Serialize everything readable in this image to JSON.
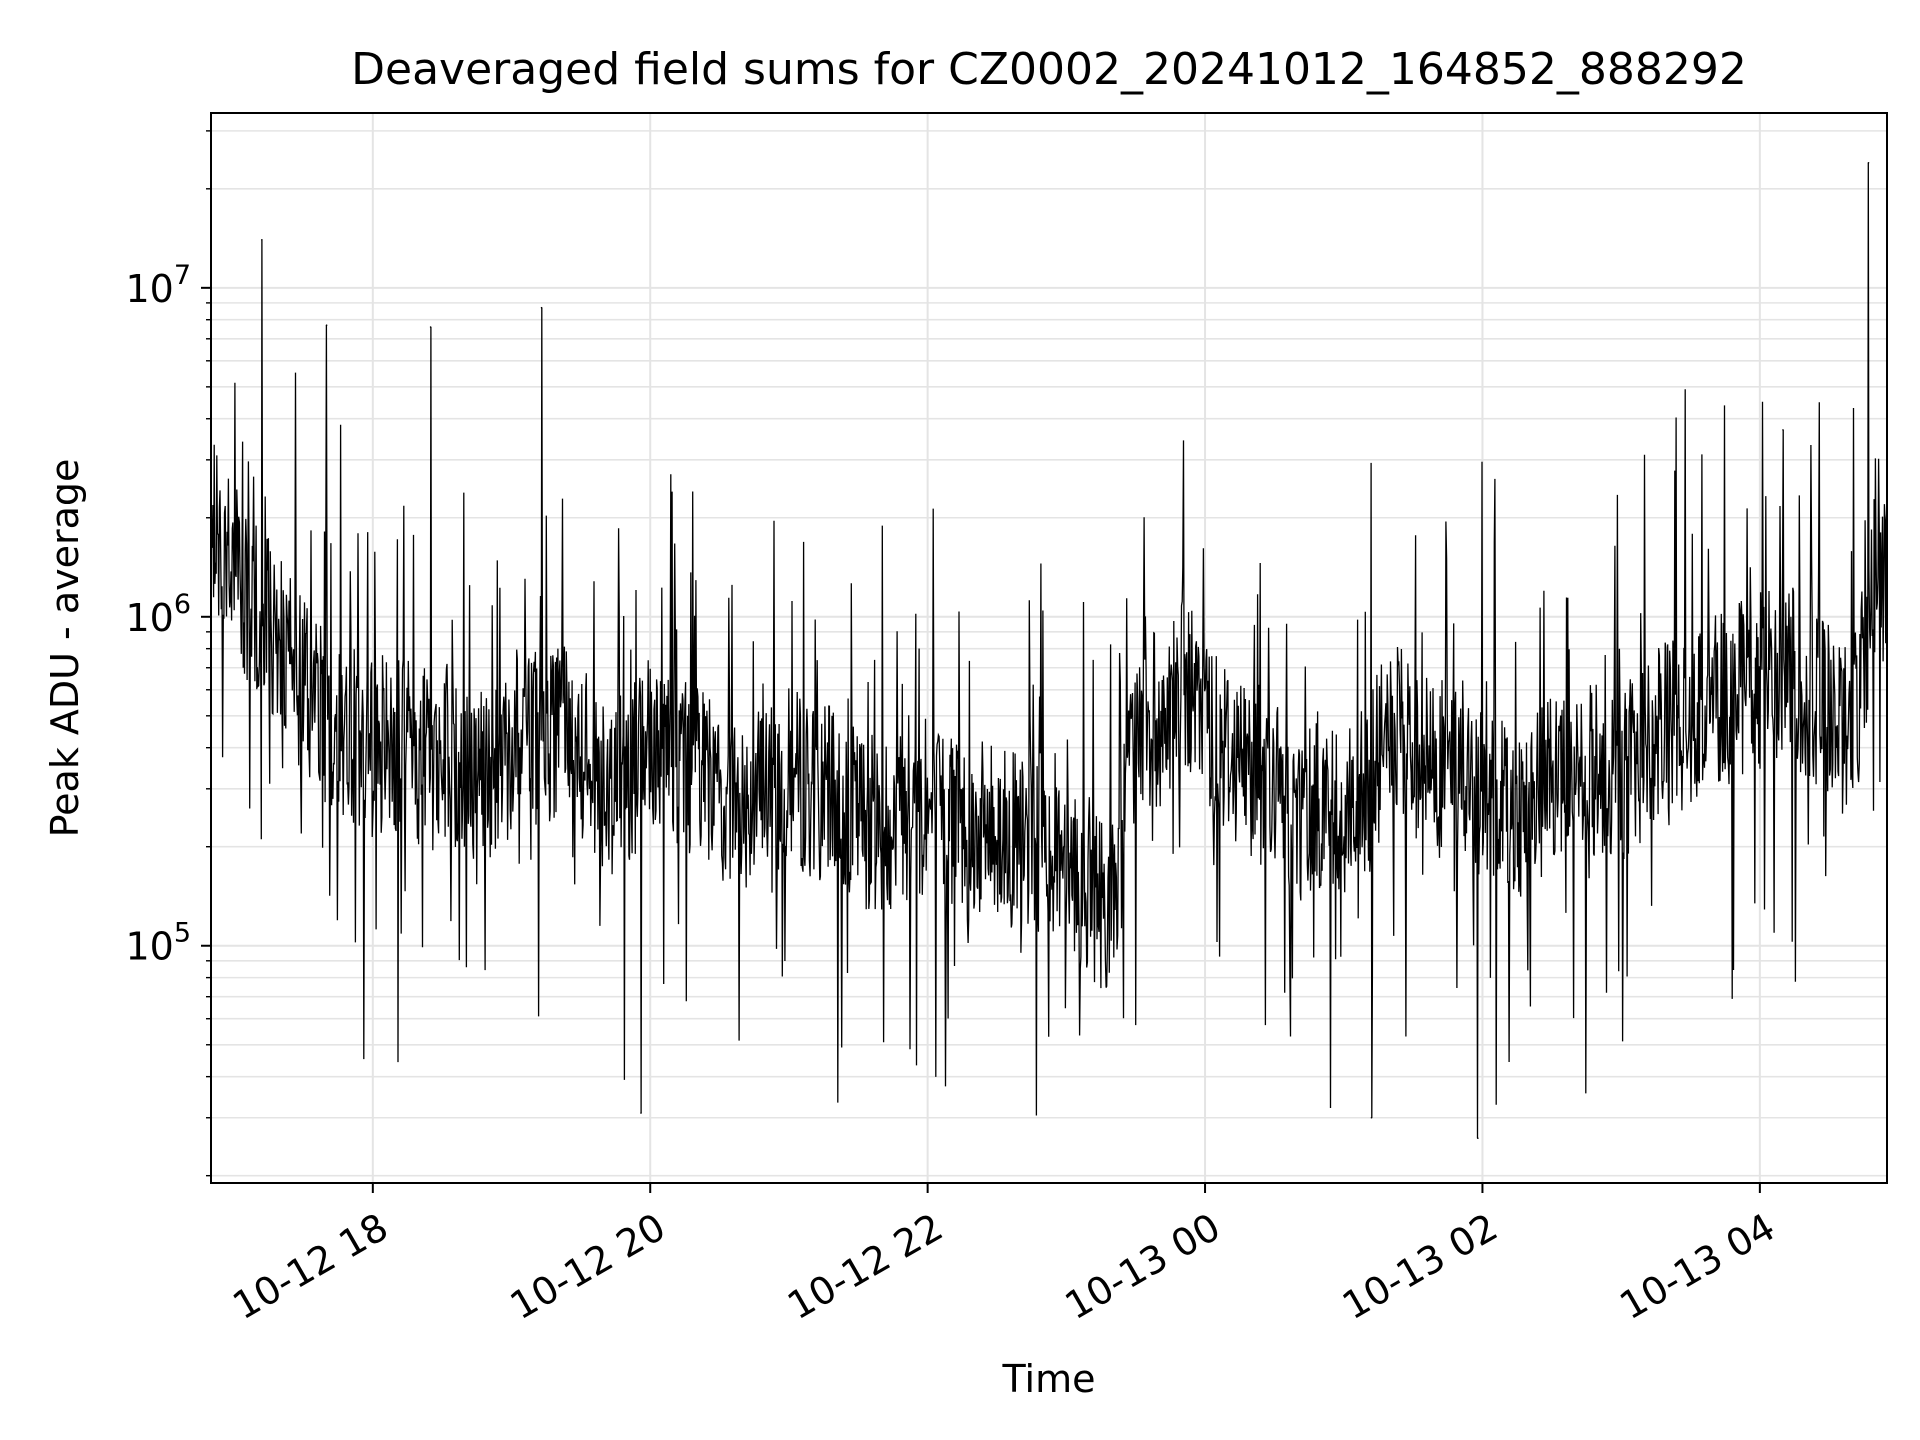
{
  "chart_data": {
    "type": "line",
    "title": "Deaveraged field sums for CZ0002_20241012_164852_888292",
    "xlabel": "Time",
    "ylabel": "Peak ADU - average",
    "yscale": "log",
    "ylim": [
      19000,
      34000000
    ],
    "xlim": [
      "2024-10-12T16:50",
      "2024-10-13T04:55"
    ],
    "grid": true,
    "legend": "none",
    "line_color": "#000000",
    "x_ticks": [
      {
        "value": "2024-10-12T18:00",
        "label": "10-12 18"
      },
      {
        "value": "2024-10-12T20:00",
        "label": "10-12 20"
      },
      {
        "value": "2024-10-12T22:00",
        "label": "10-12 22"
      },
      {
        "value": "2024-10-13T00:00",
        "label": "10-13 00"
      },
      {
        "value": "2024-10-13T02:00",
        "label": "10-13 02"
      },
      {
        "value": "2024-10-13T04:00",
        "label": "10-13 04"
      }
    ],
    "y_ticks": [
      {
        "value": 100000,
        "base": "10",
        "exp": "5"
      },
      {
        "value": 1000000,
        "base": "10",
        "exp": "6"
      },
      {
        "value": 10000000,
        "base": "10",
        "exp": "7"
      }
    ],
    "series": [
      {
        "x": [
          "2024-10-12T16:50",
          "2024-10-12T17:00",
          "2024-10-12T17:10",
          "2024-10-12T17:20",
          "2024-10-12T17:30",
          "2024-10-12T17:40",
          "2024-10-12T17:50",
          "2024-10-12T18:00",
          "2024-10-12T18:10",
          "2024-10-12T18:20",
          "2024-10-12T18:30",
          "2024-10-12T18:40",
          "2024-10-12T18:50",
          "2024-10-12T19:00",
          "2024-10-12T19:10",
          "2024-10-12T19:20",
          "2024-10-12T19:30",
          "2024-10-12T19:40",
          "2024-10-12T19:50",
          "2024-10-12T20:00",
          "2024-10-12T20:10",
          "2024-10-12T20:20",
          "2024-10-12T20:30",
          "2024-10-12T20:40",
          "2024-10-12T20:50",
          "2024-10-12T21:00",
          "2024-10-12T21:10",
          "2024-10-12T21:20",
          "2024-10-12T21:30",
          "2024-10-12T21:40",
          "2024-10-12T21:50",
          "2024-10-12T22:00",
          "2024-10-12T22:10",
          "2024-10-12T22:20",
          "2024-10-12T22:30",
          "2024-10-12T22:40",
          "2024-10-12T22:50",
          "2024-10-12T23:00",
          "2024-10-12T23:10",
          "2024-10-12T23:20",
          "2024-10-12T23:30",
          "2024-10-12T23:40",
          "2024-10-12T23:50",
          "2024-10-13T00:00",
          "2024-10-13T00:10",
          "2024-10-13T00:20",
          "2024-10-13T00:30",
          "2024-10-13T00:40",
          "2024-10-13T00:50",
          "2024-10-13T01:00",
          "2024-10-13T01:10",
          "2024-10-13T01:20",
          "2024-10-13T01:30",
          "2024-10-13T01:40",
          "2024-10-13T01:50",
          "2024-10-13T02:00",
          "2024-10-13T02:10",
          "2024-10-13T02:20",
          "2024-10-13T02:30",
          "2024-10-13T02:40",
          "2024-10-13T02:50",
          "2024-10-13T03:00",
          "2024-10-13T03:10",
          "2024-10-13T03:20",
          "2024-10-13T03:30",
          "2024-10-13T03:40",
          "2024-10-13T03:50",
          "2024-10-13T04:00",
          "2024-10-13T04:10",
          "2024-10-13T04:20",
          "2024-10-13T04:30",
          "2024-10-13T04:40",
          "2024-10-13T04:50"
        ],
        "y": [
          1900000,
          1500000,
          1000000,
          850000,
          600000,
          500000,
          450000,
          400000,
          420000,
          380000,
          400000,
          350000,
          330000,
          400000,
          420000,
          450000,
          380000,
          300000,
          330000,
          400000,
          350000,
          330000,
          300000,
          280000,
          300000,
          330000,
          300000,
          280000,
          250000,
          230000,
          260000,
          250000,
          240000,
          220000,
          230000,
          200000,
          210000,
          200000,
          150000,
          130000,
          450000,
          500000,
          600000,
          500000,
          400000,
          350000,
          300000,
          250000,
          280000,
          260000,
          300000,
          450000,
          400000,
          350000,
          330000,
          300000,
          280000,
          250000,
          330000,
          300000,
          350000,
          330000,
          400000,
          450000,
          500000,
          550000,
          600000,
          650000,
          700000,
          600000,
          500000,
          450000,
          1300000
        ],
        "spikes": [
          {
            "x": "2024-10-12T17:12",
            "y": 14000000
          },
          {
            "x": "2024-10-12T17:40",
            "y": 7700000
          },
          {
            "x": "2024-10-12T18:25",
            "y": 7600000
          },
          {
            "x": "2024-10-12T19:13",
            "y": 8700000
          },
          {
            "x": "2024-10-12T19:56",
            "y": 31000
          },
          {
            "x": "2024-10-13T01:12",
            "y": 30000
          },
          {
            "x": "2024-10-13T01:58",
            "y": 26000
          },
          {
            "x": "2024-10-13T04:10",
            "y": 3700000
          },
          {
            "x": "2024-10-13T04:47",
            "y": 24000000
          }
        ]
      }
    ]
  }
}
